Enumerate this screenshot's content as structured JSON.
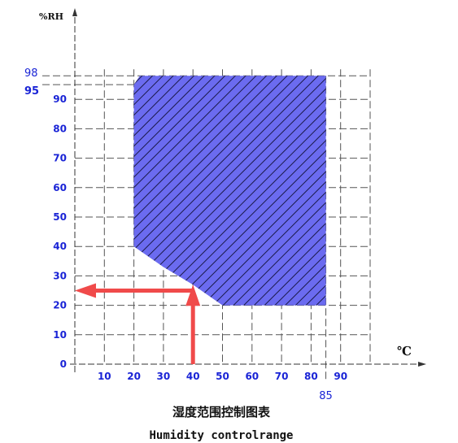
{
  "chart_data": {
    "type": "area",
    "title": "湿度范围控制图表",
    "subtitle": "Humidity controlrange",
    "xlabel": "℃",
    "ylabel": "%RH",
    "xlim": [
      0,
      100
    ],
    "ylim": [
      0,
      100
    ],
    "x_ticks": [
      10,
      20,
      30,
      40,
      50,
      60,
      70,
      80,
      90
    ],
    "y_ticks": [
      0,
      10,
      20,
      30,
      40,
      50,
      60,
      70,
      80,
      90
    ],
    "extra_x_tick": 85,
    "extra_y_ticks": [
      98,
      95
    ],
    "grid": true,
    "region": {
      "points": [
        [
          20,
          40
        ],
        [
          20,
          95
        ],
        [
          22,
          98
        ],
        [
          85,
          98
        ],
        [
          85,
          20
        ],
        [
          50,
          20
        ],
        [
          40,
          27
        ],
        [
          30,
          33
        ]
      ],
      "fill": "#6b6bf0",
      "hatch": "#1a1a4a"
    },
    "arrows": [
      {
        "from": [
          40,
          0
        ],
        "to": [
          40,
          27
        ],
        "color": "#f04a4a"
      },
      {
        "from": [
          40,
          25
        ],
        "to": [
          0,
          25
        ],
        "color": "#f04a4a"
      }
    ],
    "colors": {
      "tick_text": "#1a24d6",
      "axis": "#333333",
      "grid": "#555555"
    }
  }
}
